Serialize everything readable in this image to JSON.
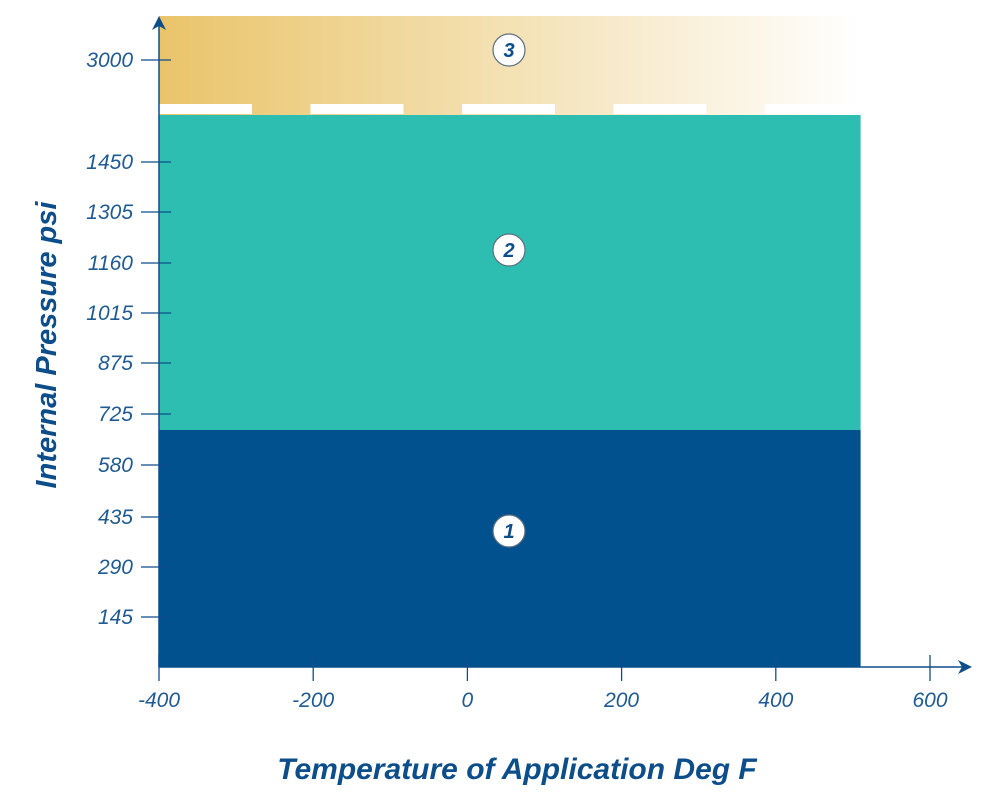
{
  "chart_data": {
    "type": "area",
    "title": "",
    "xlabel": "Temperature of Application Deg F",
    "ylabel": "Internal Pressure psi",
    "x_ticks": [
      -400,
      -200,
      0,
      200,
      400,
      600
    ],
    "x_tick_labels": [
      "-400",
      "-200",
      "0",
      "200",
      "400",
      "600"
    ],
    "y_ticks": [
      145,
      290,
      435,
      580,
      725,
      875,
      1015,
      1160,
      1305,
      1450,
      3000
    ],
    "y_tick_labels": [
      "145",
      "290",
      "435",
      "580",
      "725",
      "875",
      "1015",
      "1160",
      "1305",
      "1450",
      "3000"
    ],
    "xlim": [
      -400,
      600
    ],
    "series": [
      {
        "name": "1",
        "x_range": [
          -400,
          510
        ],
        "pressure_range": [
          0,
          670
        ],
        "color": "#02518f"
      },
      {
        "name": "2",
        "x_range": [
          -400,
          510
        ],
        "pressure_range": [
          670,
          1550
        ],
        "color": "#2ebdb1"
      },
      {
        "name": "3",
        "x_range": [
          -400,
          510
        ],
        "pressure_range": [
          1550,
          3000
        ],
        "color": "#e9c46a",
        "gradient_to": "#ffffff"
      }
    ],
    "colors": {
      "axis": "#0d4e8a",
      "text": "#1f5a92",
      "marker_fill": "#ffffff"
    }
  }
}
